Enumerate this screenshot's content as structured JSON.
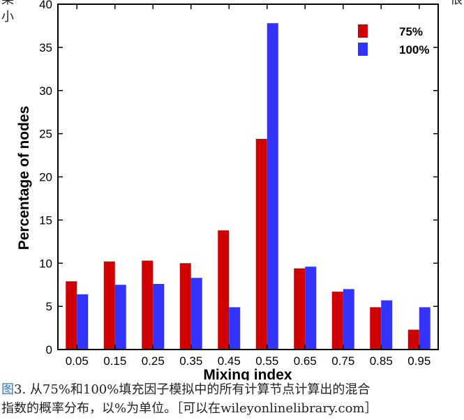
{
  "edge_text": {
    "top_left_1": "某",
    "top_left_2": "小",
    "top_right": "很"
  },
  "caption": {
    "figure_label": "图",
    "line1_rest": "3. 从75%和100%填充因子模拟中的所有计算节点计算出的混合",
    "line2": "指数的概率分布，以%为单位。［可以在wileyonlinelibrary.com］"
  },
  "chart_data": {
    "type": "bar",
    "xlabel": "Mixing index",
    "ylabel": "Percentage of nodes",
    "categories": [
      "0.05",
      "0.15",
      "0.25",
      "0.35",
      "0.45",
      "0.55",
      "0.65",
      "0.75",
      "0.85",
      "0.95"
    ],
    "ylim": [
      0,
      40
    ],
    "yticks": [
      0,
      5,
      10,
      15,
      20,
      25,
      30,
      35,
      40
    ],
    "grid": false,
    "legend_position": "top-right",
    "series": [
      {
        "name": "75%",
        "color": "#d00000",
        "values": [
          7.9,
          10.2,
          10.3,
          10.0,
          13.8,
          24.4,
          9.4,
          6.7,
          4.9,
          2.3
        ]
      },
      {
        "name": "100%",
        "color": "#3333ff",
        "values": [
          6.4,
          7.5,
          7.6,
          8.3,
          4.9,
          37.8,
          9.6,
          7.0,
          5.7,
          4.9
        ]
      }
    ]
  }
}
